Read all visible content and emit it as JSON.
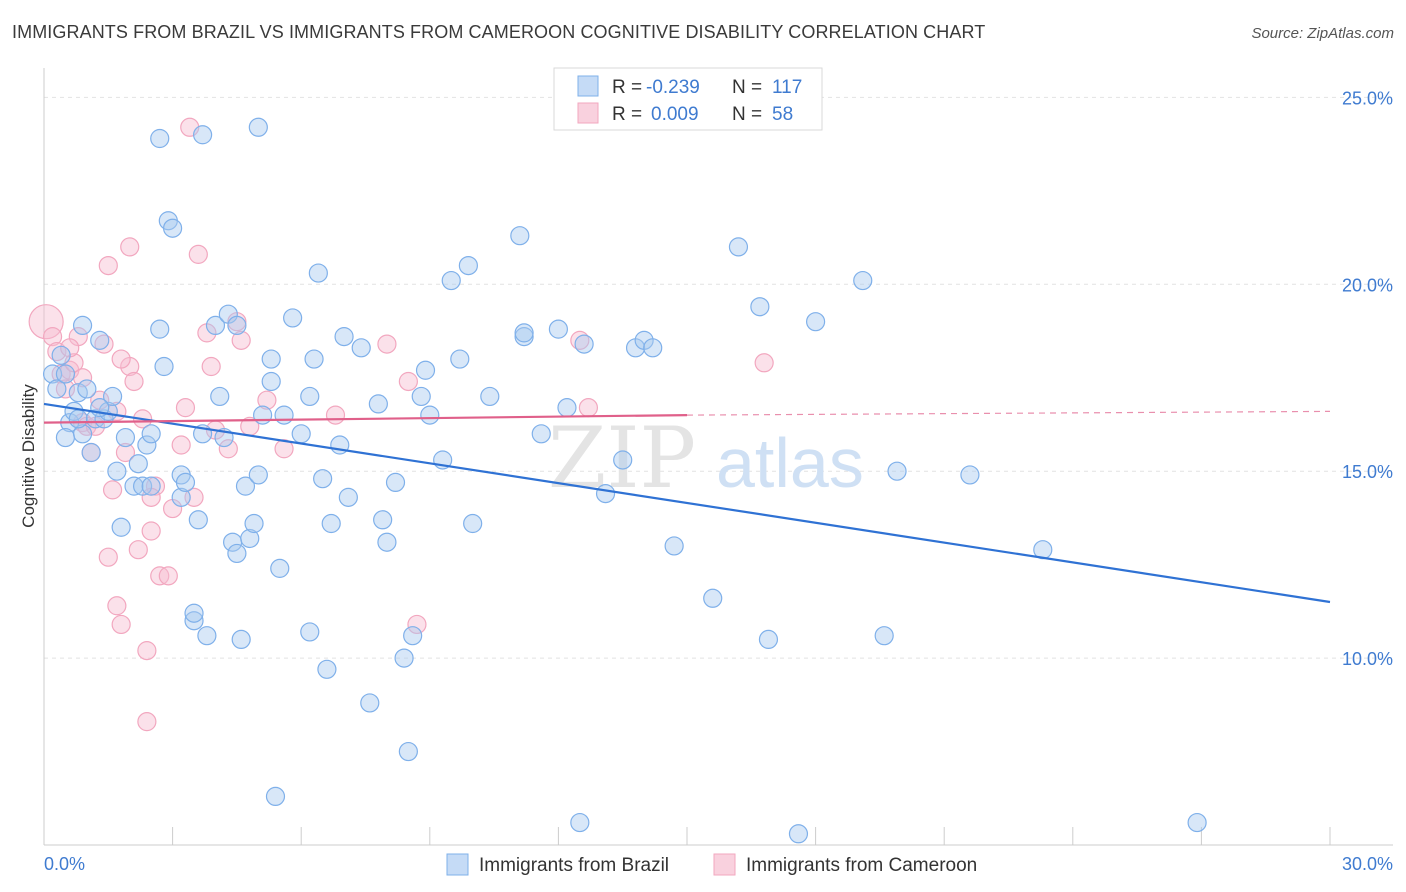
{
  "title": "IMMIGRANTS FROM BRAZIL VS IMMIGRANTS FROM CAMEROON COGNITIVE DISABILITY CORRELATION CHART",
  "source": "Source: ZipAtlas.com",
  "watermark": {
    "zip": "ZIP",
    "atlas": "atlas"
  },
  "legend": {
    "r_label": "R =",
    "n_label": "N =",
    "rows": [
      {
        "r": "-0.239",
        "n": "117",
        "color": "#7fb0ea"
      },
      {
        "r": "0.009",
        "n": "58",
        "color": "#f2a7bf"
      }
    ]
  },
  "chart_data": {
    "type": "scatter",
    "title": "IMMIGRANTS FROM BRAZIL VS IMMIGRANTS FROM CAMEROON COGNITIVE DISABILITY CORRELATION CHART",
    "xlabel": "",
    "ylabel": "Cognitive Disability",
    "xlim": [
      0,
      30
    ],
    "ylim": [
      5,
      26
    ],
    "x_tick_labels": [
      "0.0%",
      "30.0%"
    ],
    "y_ticks": [
      10,
      15,
      20,
      25
    ],
    "y_tick_labels": [
      "10.0%",
      "15.0%",
      "20.0%",
      "25.0%"
    ],
    "grid": true,
    "legend_position": "top-center",
    "series": [
      {
        "name": "Immigrants from Brazil",
        "color": "#7fb0ea",
        "line_color": "#2f72d4",
        "trend": {
          "x": [
            0,
            30
          ],
          "y": [
            16.8,
            11.5
          ]
        },
        "points": [
          [
            0.2,
            17.6
          ],
          [
            0.3,
            17.2
          ],
          [
            0.4,
            18.1
          ],
          [
            0.5,
            17.6
          ],
          [
            0.6,
            16.3
          ],
          [
            0.5,
            15.9
          ],
          [
            0.7,
            16.6
          ],
          [
            0.8,
            17.1
          ],
          [
            0.9,
            16.0
          ],
          [
            1.0,
            17.2
          ],
          [
            0.8,
            16.4
          ],
          [
            1.1,
            15.5
          ],
          [
            1.2,
            16.4
          ],
          [
            1.4,
            16.4
          ],
          [
            1.5,
            16.6
          ],
          [
            0.9,
            18.9
          ],
          [
            1.3,
            18.5
          ],
          [
            1.6,
            17.0
          ],
          [
            1.7,
            15.0
          ],
          [
            1.9,
            15.9
          ],
          [
            1.8,
            13.5
          ],
          [
            2.1,
            14.6
          ],
          [
            2.2,
            15.2
          ],
          [
            2.3,
            14.6
          ],
          [
            2.4,
            15.7
          ],
          [
            2.5,
            16.0
          ],
          [
            2.5,
            14.6
          ],
          [
            2.7,
            18.8
          ],
          [
            2.8,
            17.8
          ],
          [
            2.9,
            21.7
          ],
          [
            3.0,
            21.5
          ],
          [
            3.2,
            14.3
          ],
          [
            3.2,
            14.9
          ],
          [
            3.3,
            14.7
          ],
          [
            3.5,
            11.0
          ],
          [
            3.5,
            11.2
          ],
          [
            3.6,
            13.7
          ],
          [
            3.8,
            10.6
          ],
          [
            3.7,
            16.0
          ],
          [
            4.0,
            18.9
          ],
          [
            4.1,
            17.0
          ],
          [
            4.2,
            15.9
          ],
          [
            4.4,
            13.1
          ],
          [
            4.5,
            12.8
          ],
          [
            4.3,
            19.2
          ],
          [
            4.5,
            18.9
          ],
          [
            4.6,
            10.5
          ],
          [
            4.7,
            14.6
          ],
          [
            4.8,
            13.2
          ],
          [
            4.9,
            13.6
          ],
          [
            5.0,
            14.9
          ],
          [
            5.1,
            16.5
          ],
          [
            5.3,
            18.0
          ],
          [
            5.3,
            17.4
          ],
          [
            5.5,
            12.4
          ],
          [
            5.6,
            16.5
          ],
          [
            5.8,
            19.1
          ],
          [
            6.0,
            16.0
          ],
          [
            6.2,
            17.0
          ],
          [
            6.3,
            18.0
          ],
          [
            6.4,
            20.3
          ],
          [
            6.5,
            14.8
          ],
          [
            6.6,
            9.7
          ],
          [
            6.7,
            13.6
          ],
          [
            6.9,
            15.7
          ],
          [
            7.0,
            18.6
          ],
          [
            7.1,
            14.3
          ],
          [
            7.4,
            18.3
          ],
          [
            7.6,
            8.8
          ],
          [
            7.8,
            16.8
          ],
          [
            7.9,
            13.7
          ],
          [
            8.0,
            13.1
          ],
          [
            8.2,
            14.7
          ],
          [
            8.4,
            10.0
          ],
          [
            8.5,
            7.5
          ],
          [
            8.6,
            10.6
          ],
          [
            8.8,
            17.0
          ],
          [
            8.9,
            17.7
          ],
          [
            9.0,
            16.5
          ],
          [
            9.3,
            15.3
          ],
          [
            9.5,
            20.1
          ],
          [
            9.7,
            18.0
          ],
          [
            9.9,
            20.5
          ],
          [
            10.0,
            13.6
          ],
          [
            10.4,
            17.0
          ],
          [
            11.1,
            21.3
          ],
          [
            11.2,
            18.6
          ],
          [
            11.2,
            18.7
          ],
          [
            11.6,
            16.0
          ],
          [
            12.0,
            18.8
          ],
          [
            12.2,
            16.7
          ],
          [
            12.6,
            18.4
          ],
          [
            13.1,
            14.4
          ],
          [
            13.5,
            15.3
          ],
          [
            13.8,
            18.3
          ],
          [
            14.0,
            18.5
          ],
          [
            14.2,
            18.3
          ],
          [
            14.7,
            13.0
          ],
          [
            15.6,
            11.6
          ],
          [
            16.2,
            21.0
          ],
          [
            16.9,
            10.5
          ],
          [
            16.7,
            19.4
          ],
          [
            18.0,
            19.0
          ],
          [
            19.1,
            20.1
          ],
          [
            19.6,
            10.6
          ],
          [
            19.9,
            15.0
          ],
          [
            21.6,
            14.9
          ],
          [
            23.3,
            12.9
          ],
          [
            6.2,
            10.7
          ],
          [
            3.7,
            24.0
          ],
          [
            5.0,
            24.2
          ],
          [
            2.7,
            23.9
          ],
          [
            5.4,
            6.3
          ],
          [
            12.5,
            5.6
          ],
          [
            17.6,
            5.3
          ],
          [
            26.9,
            5.6
          ],
          [
            1.3,
            16.7
          ]
        ]
      },
      {
        "name": "Immigrants from Cameroon",
        "color": "#f2a7bf",
        "line_color": "#e0608a",
        "trend": {
          "x": [
            0,
            15
          ],
          "y": [
            16.3,
            16.5
          ]
        },
        "trend_extension": {
          "x": [
            15,
            30
          ],
          "y": [
            16.5,
            16.6
          ]
        },
        "points": [
          [
            0.05,
            19.0
          ],
          [
            0.2,
            18.6
          ],
          [
            0.3,
            18.2
          ],
          [
            0.4,
            17.6
          ],
          [
            0.5,
            17.2
          ],
          [
            0.6,
            17.7
          ],
          [
            0.7,
            17.9
          ],
          [
            0.8,
            18.6
          ],
          [
            0.9,
            16.3
          ],
          [
            1.0,
            16.2
          ],
          [
            1.1,
            15.5
          ],
          [
            1.2,
            16.2
          ],
          [
            1.3,
            16.9
          ],
          [
            1.4,
            18.4
          ],
          [
            1.5,
            12.7
          ],
          [
            1.6,
            14.5
          ],
          [
            1.7,
            11.4
          ],
          [
            1.8,
            10.9
          ],
          [
            1.9,
            15.5
          ],
          [
            2.0,
            17.8
          ],
          [
            2.1,
            17.4
          ],
          [
            2.2,
            12.9
          ],
          [
            2.3,
            16.4
          ],
          [
            2.4,
            10.2
          ],
          [
            2.5,
            13.4
          ],
          [
            2.6,
            14.6
          ],
          [
            2.7,
            12.2
          ],
          [
            2.9,
            12.2
          ],
          [
            3.0,
            14.0
          ],
          [
            3.2,
            15.7
          ],
          [
            3.3,
            16.7
          ],
          [
            3.5,
            14.3
          ],
          [
            3.6,
            20.8
          ],
          [
            3.8,
            18.7
          ],
          [
            3.9,
            17.8
          ],
          [
            4.0,
            16.1
          ],
          [
            4.3,
            15.6
          ],
          [
            4.5,
            19.0
          ],
          [
            4.6,
            18.5
          ],
          [
            4.8,
            16.2
          ],
          [
            5.2,
            16.9
          ],
          [
            5.6,
            15.6
          ],
          [
            6.8,
            16.5
          ],
          [
            8.0,
            18.4
          ],
          [
            8.5,
            17.4
          ],
          [
            8.7,
            10.9
          ],
          [
            12.5,
            18.5
          ],
          [
            12.7,
            16.7
          ],
          [
            16.8,
            17.9
          ],
          [
            2.0,
            21.0
          ],
          [
            1.5,
            20.5
          ],
          [
            3.4,
            24.2
          ],
          [
            2.4,
            8.3
          ],
          [
            1.8,
            18.0
          ],
          [
            0.9,
            17.5
          ],
          [
            0.6,
            18.3
          ],
          [
            1.7,
            16.6
          ],
          [
            2.5,
            14.3
          ]
        ]
      }
    ]
  },
  "bottom_legend": [
    {
      "label": "Immigrants from Brazil",
      "color": "#7fb0ea"
    },
    {
      "label": "Immigrants from Cameroon",
      "color": "#f2a7bf"
    }
  ]
}
